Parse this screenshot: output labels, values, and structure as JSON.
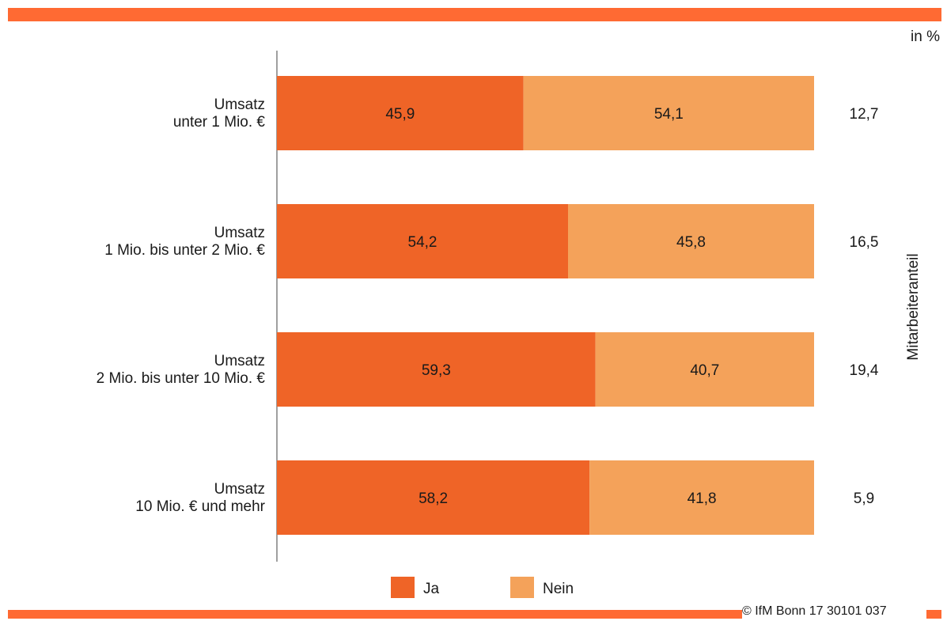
{
  "colors": {
    "accent": "#ff6a33",
    "ja": "#ef6427",
    "nein": "#f4a25a",
    "axis": "#808080"
  },
  "unit_label": "in %",
  "footer": {
    "credit": "© IfM Bonn 17 30101 037"
  },
  "chart_data": {
    "type": "bar",
    "orientation": "horizontal",
    "stacked": true,
    "categories": [
      [
        "Umsatz",
        "unter 1 Mio. €"
      ],
      [
        "Umsatz",
        "1 Mio. bis unter 2 Mio. €"
      ],
      [
        "Umsatz",
        "2 Mio. bis unter 10 Mio. €"
      ],
      [
        "Umsatz",
        "10 Mio. € und mehr"
      ]
    ],
    "series": [
      {
        "name": "Ja",
        "values": [
          45.9,
          54.2,
          59.3,
          58.2
        ],
        "labels": [
          "45,9",
          "54,2",
          "59,3",
          "58,2"
        ]
      },
      {
        "name": "Nein",
        "values": [
          54.1,
          45.8,
          40.7,
          41.8
        ],
        "labels": [
          "54,1",
          "45,8",
          "40,7",
          "41,8"
        ]
      }
    ],
    "side_values": [
      12.7,
      16.5,
      19.4,
      5.9
    ],
    "side_labels": [
      "12,7",
      "16,5",
      "19,4",
      "5,9"
    ],
    "side_axis_label": "Mitarbeiteranteil",
    "xlim": [
      0,
      100
    ],
    "grid": false,
    "legend_position": "bottom-center"
  }
}
